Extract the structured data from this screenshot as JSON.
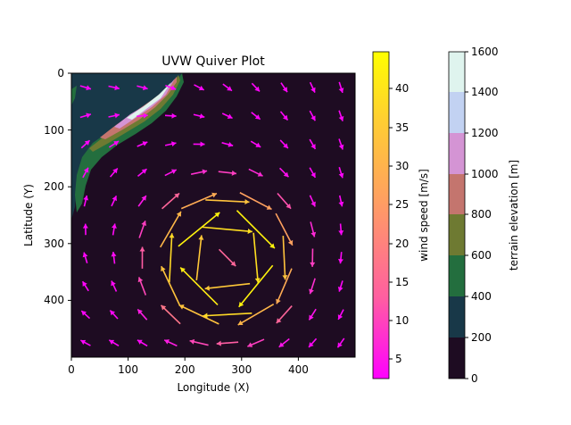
{
  "chart_data": {
    "type": "quiver",
    "title": "UVW Quiver Plot",
    "xlabel": "Longitude (X)",
    "ylabel": "Latitude (Y)",
    "xlim": [
      0,
      500
    ],
    "ylim": [
      500,
      0
    ],
    "xticks": [
      "0",
      "100",
      "200",
      "300",
      "400"
    ],
    "yticks": [
      "0",
      "100",
      "200",
      "300",
      "400"
    ],
    "grid_step": 50,
    "grid_start": 25,
    "vortex_center": [
      270,
      330
    ],
    "wind_colorbar": {
      "label": "wind speed [m/s]",
      "ticks": [
        "5",
        "10",
        "15",
        "20",
        "25",
        "30",
        "35",
        "40"
      ],
      "range": [
        2.5,
        45
      ],
      "colormap": [
        "#ff00ff",
        "#ff5fa0",
        "#ffa060",
        "#ffd030",
        "#ffff00"
      ]
    },
    "terrain_colorbar": {
      "label": "terrain elevation [m]",
      "ticks": [
        "0",
        "200",
        "400",
        "600",
        "800",
        "1000",
        "1200",
        "1400",
        "1600"
      ],
      "colors": [
        "#1e0c22",
        "#183848",
        "#236e3e",
        "#6e7a32",
        "#c4756e",
        "#d494d4",
        "#c2d2f2",
        "#dff4ee"
      ]
    },
    "terrain_background": "#1e0c22"
  }
}
